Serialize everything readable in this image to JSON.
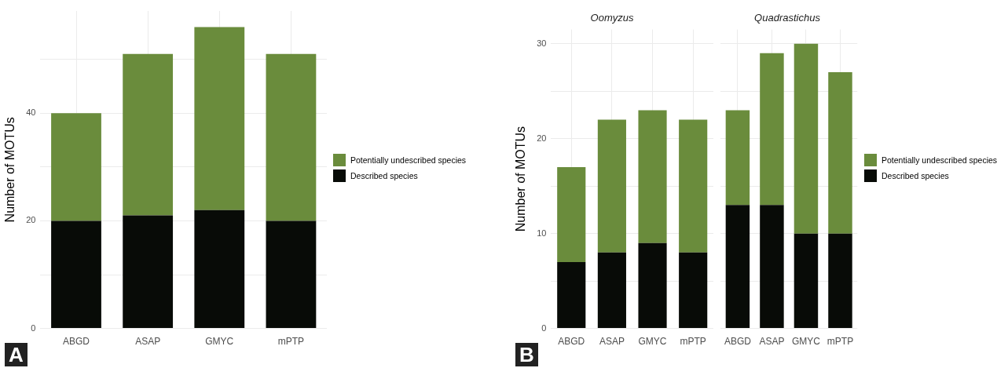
{
  "chart_data": [
    {
      "type": "bar",
      "stacked": true,
      "ylabel": "Number of MOTUs",
      "categories": [
        "ABGD",
        "ASAP",
        "GMYC",
        "mPTP"
      ],
      "series": [
        {
          "name": "Described species",
          "color": "#080b07",
          "values": [
            20,
            21,
            22,
            20
          ]
        },
        {
          "name": "Potentially undescribed species",
          "color": "#6a8c3c",
          "values": [
            20,
            30,
            34,
            31
          ]
        }
      ],
      "ylim": [
        0,
        59
      ],
      "yticks": [
        0,
        {
          "value": 10,
          "label": null
        },
        20,
        {
          "value": 30,
          "label": null
        },
        40,
        {
          "value": 50,
          "label": null
        }
      ],
      "grid": true,
      "legend": "right",
      "annotations": [
        "A"
      ]
    },
    {
      "type": "bar",
      "stacked": true,
      "title": "Oomyzus",
      "ylabel": "Number of MOTUs",
      "categories": [
        "ABGD",
        "ASAP",
        "GMYC",
        "mPTP"
      ],
      "series": [
        {
          "color": "#080b07",
          "values": [
            7,
            8,
            9,
            8
          ]
        },
        {
          "color": "#6a8c3c",
          "values": [
            10,
            14,
            14,
            14
          ]
        }
      ],
      "ylim": [
        0,
        31.5
      ],
      "yticks": [
        0,
        {
          "value": 5,
          "label": null
        },
        10,
        {
          "value": 15,
          "label": null
        },
        20,
        {
          "value": 25,
          "label": null
        },
        30
      ],
      "grid": true,
      "annotations": [
        "B"
      ]
    },
    {
      "type": "bar",
      "stacked": true,
      "title": "Quadrastichus",
      "categories": [
        "ABGD",
        "ASAP",
        "GMYC",
        "mPTP"
      ],
      "series": [
        {
          "name": "Described species",
          "color": "#080b07",
          "values": [
            13,
            13,
            10,
            10
          ]
        },
        {
          "name": "Potentially undescribed species",
          "color": "#6a8c3c",
          "values": [
            10,
            16,
            20,
            17
          ]
        }
      ],
      "ylim": [
        0,
        31.5
      ],
      "yticks": [
        0,
        {
          "value": 5,
          "label": null
        },
        10,
        {
          "value": 15,
          "label": null
        },
        20,
        {
          "value": 25,
          "label": null
        },
        30
      ],
      "grid": true,
      "legend": "right",
      "tick_labels": "x"
    }
  ]
}
